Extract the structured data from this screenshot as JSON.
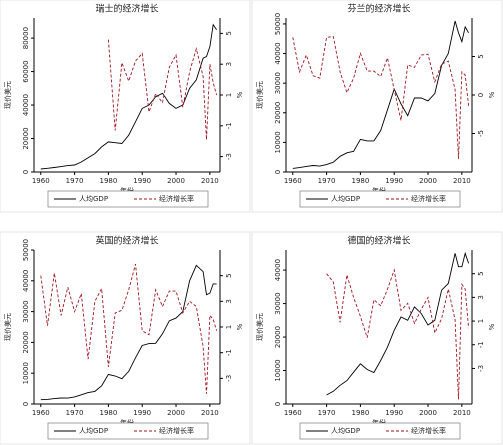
{
  "chart_data": [
    {
      "type": "line",
      "title": "瑞士的经济增长",
      "xlabel": "年份",
      "ylabel": "现价美元",
      "y2label": "%",
      "x": [
        1960,
        1962,
        1964,
        1966,
        1968,
        1970,
        1972,
        1974,
        1976,
        1978,
        1980,
        1982,
        1984,
        1986,
        1988,
        1990,
        1992,
        1994,
        1996,
        1998,
        2000,
        2002,
        2004,
        2006,
        2008,
        2009,
        2010,
        2011,
        2012
      ],
      "xlim": [
        1958,
        2013
      ],
      "xticks": [
        1960,
        1970,
        1980,
        1990,
        2000,
        2010
      ],
      "ylim": [
        0,
        92000
      ],
      "yticks": [
        0,
        20000,
        40000,
        60000,
        80000
      ],
      "y2lim": [
        -4,
        6
      ],
      "y2ticks": [
        -3,
        -1,
        1,
        3,
        5
      ],
      "series": [
        {
          "name": "人均GDP",
          "color": "#000000",
          "style": "solid",
          "values": [
            1800,
            2200,
            2700,
            3200,
            3800,
            4200,
            6000,
            8500,
            11000,
            15000,
            18000,
            17500,
            17000,
            22000,
            30000,
            38000,
            40000,
            45000,
            47000,
            41000,
            38000,
            40000,
            50000,
            55000,
            68000,
            69000,
            75000,
            88000,
            85000
          ]
        },
        {
          "name": "经济增长率",
          "color": "#a0141e",
          "style": "dashed",
          "axis": "y2",
          "values": [
            null,
            null,
            null,
            null,
            null,
            null,
            null,
            null,
            null,
            null,
            4.6,
            -1.3,
            3.1,
            1.9,
            3.2,
            3.7,
            -0.1,
            1.1,
            0.5,
            2.8,
            3.6,
            0.2,
            2.5,
            4.0,
            2.2,
            -1.9,
            3.0,
            1.8,
            1.0
          ]
        }
      ]
    },
    {
      "type": "line",
      "title": "芬兰的经济增长",
      "xlabel": "年份",
      "ylabel": "现价美元",
      "y2label": "%",
      "x": [
        1960,
        1962,
        1964,
        1966,
        1968,
        1970,
        1972,
        1974,
        1976,
        1978,
        1980,
        1982,
        1984,
        1986,
        1988,
        1990,
        1992,
        1994,
        1996,
        1998,
        2000,
        2002,
        2004,
        2006,
        2008,
        2009,
        2010,
        2011,
        2012
      ],
      "xlim": [
        1958,
        2013
      ],
      "xticks": [
        1960,
        1970,
        1980,
        1990,
        2000,
        2010
      ],
      "ylim": [
        0,
        52000
      ],
      "yticks": [
        0,
        10000,
        20000,
        30000,
        40000,
        50000
      ],
      "y2lim": [
        -10,
        10
      ],
      "y2ticks": [
        -5,
        0,
        5
      ],
      "series": [
        {
          "name": "人均GDP",
          "color": "#000000",
          "style": "solid",
          "values": [
            1200,
            1500,
            1900,
            2200,
            2000,
            2500,
            3300,
            5300,
            6500,
            7000,
            11000,
            10500,
            10500,
            14000,
            21000,
            28000,
            23000,
            19000,
            25000,
            25000,
            24000,
            26500,
            36000,
            40000,
            51000,
            47000,
            44000,
            49000,
            47000
          ]
        },
        {
          "name": "经济增长率",
          "color": "#a0141e",
          "style": "dashed",
          "axis": "y2",
          "values": [
            7.5,
            3.0,
            5.2,
            2.5,
            2.2,
            7.5,
            7.6,
            3.0,
            0.3,
            2.2,
            5.4,
            3.1,
            3.1,
            2.4,
            4.8,
            0.7,
            -3.3,
            3.9,
            3.6,
            5.2,
            5.3,
            1.7,
            4.0,
            4.4,
            0.7,
            -8.3,
            3.0,
            2.6,
            -1.4
          ]
        }
      ]
    },
    {
      "type": "line",
      "title": "英国的经济增长",
      "xlabel": "年份",
      "ylabel": "现价美元",
      "y2label": "%",
      "x": [
        1960,
        1962,
        1964,
        1966,
        1968,
        1970,
        1972,
        1974,
        1976,
        1978,
        1980,
        1982,
        1984,
        1986,
        1988,
        1990,
        1992,
        1994,
        1996,
        1998,
        2000,
        2002,
        2004,
        2006,
        2008,
        2009,
        2010,
        2011,
        2012
      ],
      "xlim": [
        1958,
        2013
      ],
      "xticks": [
        1960,
        1970,
        1980,
        1990,
        2000,
        2010
      ],
      "ylim": [
        0,
        50000
      ],
      "yticks": [
        0,
        10000,
        20000,
        30000,
        40000,
        50000
      ],
      "y2lim": [
        -5,
        7
      ],
      "y2ticks": [
        -3,
        -1,
        1,
        3,
        5
      ],
      "series": [
        {
          "name": "人均GDP",
          "color": "#000000",
          "style": "solid",
          "values": [
            1400,
            1500,
            1750,
            1950,
            1900,
            2300,
            3000,
            3700,
            4100,
            5900,
            9600,
            9100,
            8200,
            10600,
            15000,
            19000,
            19600,
            19700,
            22800,
            27000,
            27900,
            30000,
            40000,
            45000,
            43000,
            35500,
            36000,
            39000,
            39000
          ]
        },
        {
          "name": "经济增长率",
          "color": "#a0141e",
          "style": "dashed",
          "axis": "y2",
          "values": [
            5.0,
            1.1,
            5.2,
            1.9,
            4.1,
            2.2,
            3.6,
            -1.5,
            3.0,
            4.0,
            -2.1,
            2.1,
            2.3,
            3.9,
            5.9,
            0.7,
            0.4,
            3.9,
            2.6,
            3.8,
            3.8,
            2.1,
            3.0,
            2.6,
            -0.5,
            -4.2,
            1.9,
            1.6,
            0.7
          ]
        }
      ]
    },
    {
      "type": "line",
      "title": "德国的经济增长",
      "xlabel": "年份",
      "ylabel": "现价美元",
      "y2label": "%",
      "x": [
        1960,
        1962,
        1964,
        1966,
        1968,
        1970,
        1972,
        1974,
        1976,
        1978,
        1980,
        1982,
        1984,
        1986,
        1988,
        1990,
        1992,
        1994,
        1996,
        1998,
        2000,
        2002,
        2004,
        2006,
        2008,
        2009,
        2010,
        2011,
        2012
      ],
      "xlim": [
        1958,
        2013
      ],
      "xticks": [
        1960,
        1970,
        1980,
        1990,
        2000,
        2010
      ],
      "ylim": [
        0,
        46000
      ],
      "yticks": [
        0,
        10000,
        20000,
        30000,
        40000
      ],
      "y2lim": [
        -6,
        7
      ],
      "y2ticks": [
        -3,
        -1,
        1,
        3,
        5
      ],
      "series": [
        {
          "name": "人均GDP",
          "color": "#000000",
          "style": "solid",
          "values": [
            null,
            null,
            null,
            null,
            null,
            2700,
            3800,
            5600,
            7000,
            9500,
            12000,
            10300,
            9400,
            13000,
            17000,
            22000,
            26000,
            25000,
            29000,
            27000,
            23600,
            25000,
            34000,
            36000,
            45000,
            41000,
            41000,
            45000,
            42000
          ]
        },
        {
          "name": "经济增长率",
          "color": "#a0141e",
          "style": "dashed",
          "axis": "y2",
          "values": [
            null,
            null,
            null,
            null,
            null,
            5.0,
            4.3,
            0.9,
            4.9,
            3.0,
            1.4,
            -0.4,
            2.8,
            2.3,
            3.7,
            5.3,
            1.9,
            2.5,
            0.8,
            2.0,
            3.0,
            0.0,
            1.2,
            3.7,
            1.1,
            -5.6,
            4.1,
            3.7,
            0.4
          ]
        }
      ]
    }
  ]
}
